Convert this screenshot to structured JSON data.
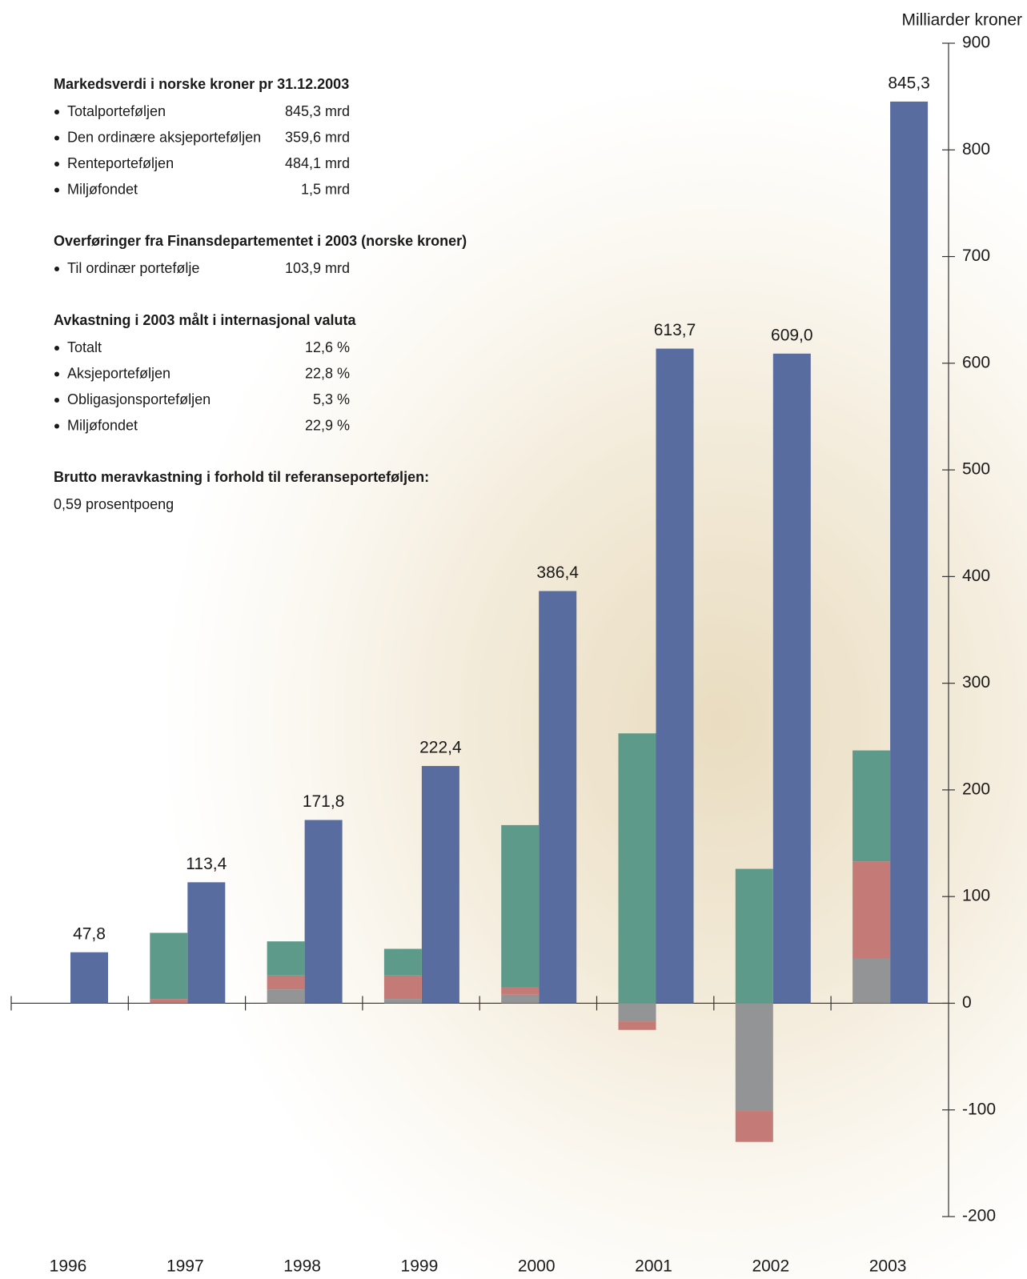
{
  "chart_data": {
    "type": "bar",
    "y_label": "Milliarder kroner",
    "categories": [
      "1996",
      "1997",
      "1998",
      "1999",
      "2000",
      "2001",
      "2002",
      "2003"
    ],
    "ylim": [
      -200,
      900
    ],
    "yticks": [
      -200,
      -100,
      0,
      100,
      200,
      300,
      400,
      500,
      600,
      700,
      800,
      900
    ],
    "series": [
      {
        "color": "#586ca0",
        "values": [
          47.8,
          113.4,
          171.8,
          222.4,
          386.4,
          613.7,
          609.0,
          845.3
        ],
        "value_labels": [
          "47,8",
          "113,4",
          "171,8",
          "222,4",
          "386,4",
          "613,7",
          "609,0",
          "845,3"
        ]
      },
      {
        "color": "#929496",
        "stacked": true,
        "values": [
          null,
          null,
          13,
          4,
          8,
          -17,
          -101,
          42
        ]
      },
      {
        "color": "#c47a77",
        "stacked": true,
        "values": [
          null,
          4,
          13,
          22,
          7,
          -8,
          -29,
          91
        ]
      },
      {
        "color": "#5e9a8a",
        "stacked": true,
        "values": [
          null,
          62,
          32,
          25,
          152,
          253,
          126,
          104
        ]
      }
    ]
  },
  "summary": [
    {
      "heading": "Markedsverdi i norske kroner pr 31.12.2003",
      "items": [
        {
          "label": "Totalporteføljen",
          "value": "845,3 mrd"
        },
        {
          "label": "Den ordinære aksjeporteføljen",
          "value": "359,6 mrd"
        },
        {
          "label": "Renteporteføljen",
          "value": "484,1 mrd"
        },
        {
          "label": "Miljøfondet",
          "value": "1,5 mrd"
        }
      ]
    },
    {
      "heading": "Overføringer fra Finansdepartementet i 2003 (norske kroner)",
      "items": [
        {
          "label": "Til ordinær portefølje",
          "value": "103,9 mrd"
        }
      ]
    },
    {
      "heading": "Avkastning i 2003 målt i internasjonal valuta",
      "items": [
        {
          "label": "Totalt",
          "value": "12,6 %"
        },
        {
          "label": "Aksjeporteføljen",
          "value": "22,8 %"
        },
        {
          "label": "Obligasjonsporteføljen",
          "value": "5,3 %"
        },
        {
          "label": "Miljøfondet",
          "value": "22,9 %"
        }
      ]
    },
    {
      "heading": "Brutto meravkastning i forhold til referanseporteføljen:",
      "text": "0,59 prosentpoeng"
    }
  ]
}
